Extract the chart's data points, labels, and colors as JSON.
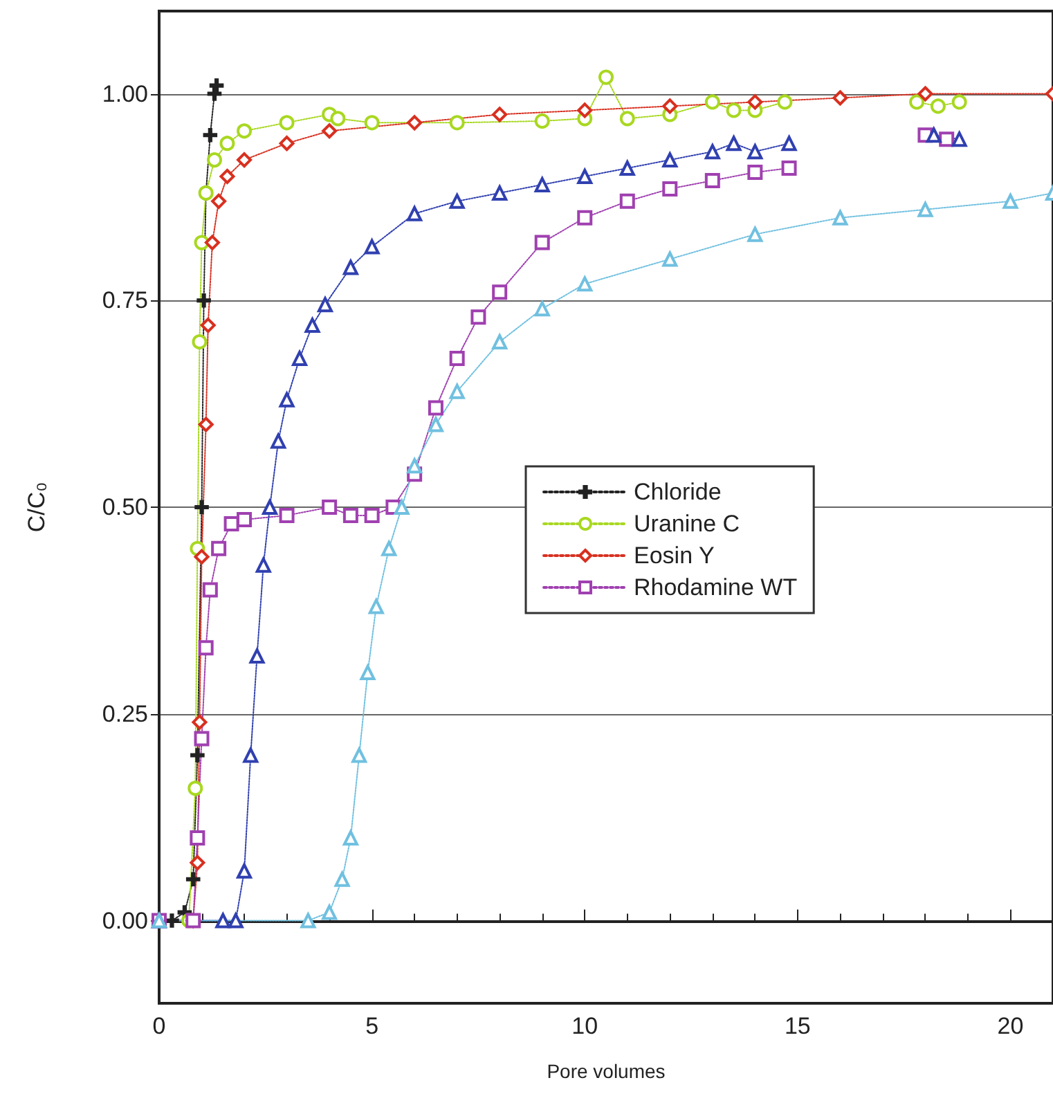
{
  "chart_data": {
    "type": "line",
    "xlabel": "Pore volumes",
    "ylabel": "C/C₀",
    "xlim": [
      0,
      21
    ],
    "xticks": [
      0,
      5,
      10,
      15,
      20
    ],
    "ylim": [
      -0.1,
      1.1
    ],
    "yticks": [
      {
        "value": 0,
        "label": "0.00"
      },
      {
        "value": 0.25,
        "label": "0.25"
      },
      {
        "value": 0.5,
        "label": "0.50"
      },
      {
        "value": 0.75,
        "label": "0.75"
      },
      {
        "value": 1,
        "label": "1.00"
      }
    ],
    "grid": "y",
    "legend": "right",
    "line_style": "dotted",
    "series": [
      {
        "name": "Chloride",
        "color": "#222222",
        "marker": "cross",
        "x": [
          0.3,
          0.6,
          0.8,
          0.9,
          1.0,
          1.05,
          1.1,
          1.2,
          1.3,
          1.35
        ],
        "values": [
          0,
          0.01,
          0.05,
          0.2,
          0.5,
          0.75,
          0.88,
          0.95,
          1.0,
          1.01
        ]
      },
      {
        "name": "Uranine C",
        "color": "#a8d820",
        "marker": "circle",
        "x": [
          0,
          0.7,
          0.85,
          0.9,
          0.95,
          1.0,
          1.1,
          1.3,
          1.6,
          2,
          3,
          4,
          4.2,
          5,
          7,
          9,
          10,
          10.5,
          11,
          12,
          13,
          13.5,
          14,
          14.7,
          16,
          17.8,
          18.3,
          18.8
        ],
        "values": [
          0,
          0,
          0.16,
          0.45,
          0.7,
          0.82,
          0.88,
          0.92,
          0.94,
          0.955,
          0.965,
          0.975,
          0.97,
          0.965,
          0.965,
          0.967,
          0.97,
          1.02,
          0.97,
          0.975,
          0.99,
          0.98,
          0.98,
          0.99,
          null,
          0.99,
          0.985,
          0.99
        ]
      },
      {
        "name": "Eosin Y",
        "color": "#d83020",
        "marker": "diamond",
        "x": [
          0,
          0.8,
          0.9,
          0.95,
          1.0,
          1.1,
          1.15,
          1.25,
          1.4,
          1.6,
          2,
          3,
          4,
          6,
          8,
          10,
          12,
          14,
          16,
          18,
          21
        ],
        "values": [
          0,
          0,
          0.07,
          0.24,
          0.44,
          0.6,
          0.72,
          0.82,
          0.87,
          0.9,
          0.92,
          0.94,
          0.955,
          0.965,
          0.975,
          0.98,
          0.985,
          0.99,
          0.995,
          1.0,
          1.0
        ]
      },
      {
        "name": "Rhodamine WT",
        "color": "#a040b0",
        "marker": "square",
        "x": [
          0,
          0.8,
          0.9,
          1.0,
          1.1,
          1.2,
          1.4,
          1.7,
          2,
          3,
          4,
          4.5,
          5,
          5.5,
          6,
          6.5,
          7,
          7.5,
          8,
          9,
          10,
          11,
          12,
          13,
          14,
          14.8,
          16,
          18.0,
          18.5
        ],
        "values": [
          0,
          0,
          0.1,
          0.22,
          0.33,
          0.4,
          0.45,
          0.48,
          0.485,
          0.49,
          0.5,
          0.49,
          0.49,
          0.5,
          0.54,
          0.62,
          0.68,
          0.73,
          0.76,
          0.82,
          0.85,
          0.87,
          0.885,
          0.895,
          0.905,
          0.91,
          null,
          0.95,
          0.945
        ]
      },
      {
        "color": "#3040b0",
        "marker": "triangle",
        "x": [
          0,
          1.5,
          1.8,
          2.0,
          2.15,
          2.3,
          2.45,
          2.6,
          2.8,
          3.0,
          3.3,
          3.6,
          3.9,
          4.5,
          5,
          6,
          7,
          8,
          9,
          10,
          11,
          12,
          13,
          13.5,
          14,
          14.8,
          16,
          18.2,
          18.8
        ],
        "values": [
          0,
          0,
          0,
          0.06,
          0.2,
          0.32,
          0.43,
          0.5,
          0.58,
          0.63,
          0.68,
          0.72,
          0.745,
          0.79,
          0.815,
          0.855,
          0.87,
          0.88,
          0.89,
          0.9,
          0.91,
          0.92,
          0.93,
          0.94,
          0.93,
          0.94,
          null,
          0.95,
          0.945
        ]
      },
      {
        "color": "#70c0e0",
        "marker": "triangle",
        "x": [
          0,
          3.5,
          4.0,
          4.3,
          4.5,
          4.7,
          4.9,
          5.1,
          5.4,
          5.7,
          6,
          6.5,
          7,
          8,
          9,
          10,
          12,
          14,
          16,
          18,
          20,
          21
        ],
        "values": [
          0,
          0,
          0.01,
          0.05,
          0.1,
          0.2,
          0.3,
          0.38,
          0.45,
          0.5,
          0.55,
          0.6,
          0.64,
          0.7,
          0.74,
          0.77,
          0.8,
          0.83,
          0.85,
          0.86,
          0.87,
          0.88
        ]
      }
    ]
  }
}
